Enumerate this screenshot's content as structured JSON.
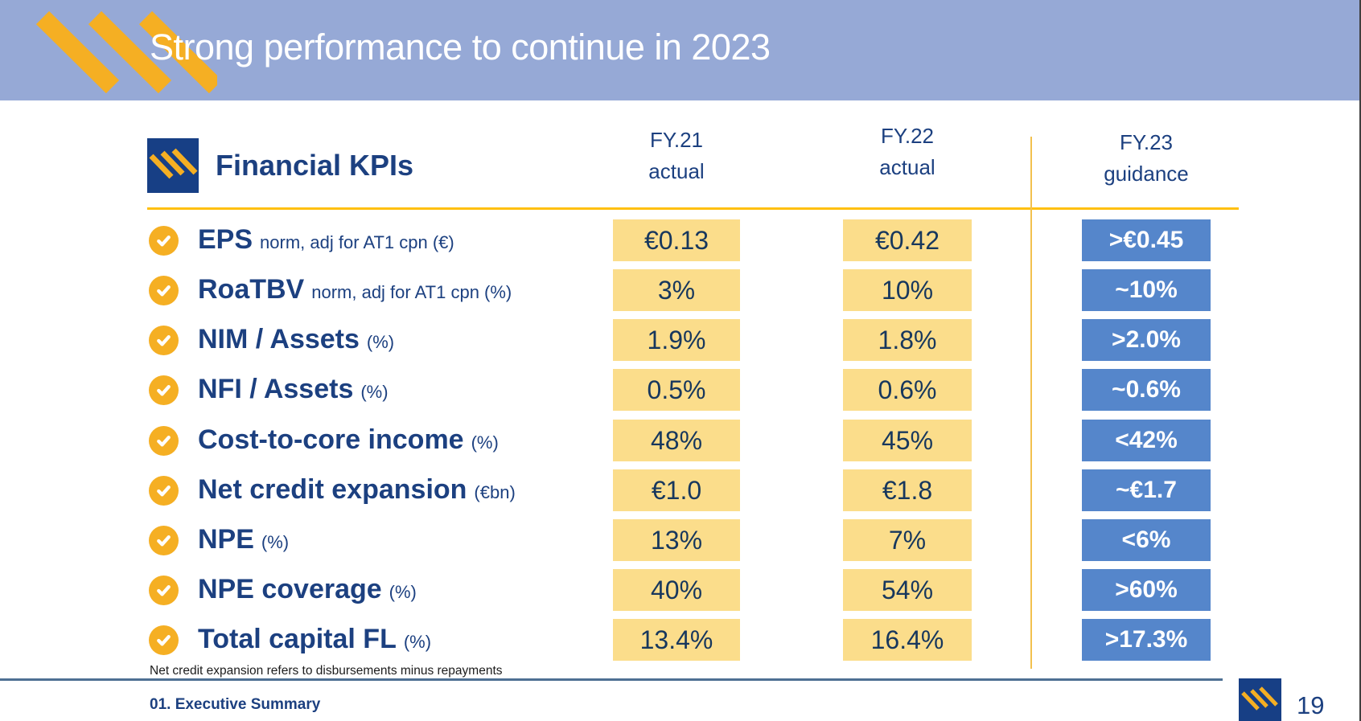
{
  "colors": {
    "band": "#96A9D6",
    "gold": "#F5AF23",
    "gold-line": "#FFC010",
    "gold-thin": "#F2C14E",
    "navy": "#1C4080",
    "navy-deep": "#17375D",
    "yellow-box": "#FBDD8B",
    "blue-box": "#5586CB",
    "logo-navy": "#173F85",
    "rule": "#4E7093",
    "edge": "#3F3F3F",
    "footnote": "#1C1C1C"
  },
  "header": {
    "title": "Strong performance to continue in 2023"
  },
  "table": {
    "title": "Financial KPIs",
    "columns": [
      {
        "line1": "FY.21",
        "line2": "actual"
      },
      {
        "line1": "FY.22",
        "line2": "actual"
      },
      {
        "line1": "FY.23",
        "line2": "guidance"
      }
    ],
    "rows": [
      {
        "label": "EPS",
        "sublabel": "norm, adj for AT1 cpn (€)",
        "fy21": "€0.13",
        "fy22": "€0.42",
        "fy23": ">€0.45"
      },
      {
        "label": "RoaTBV",
        "sublabel": "norm, adj for AT1 cpn (%)",
        "fy21": "3%",
        "fy22": "10%",
        "fy23": "~10%"
      },
      {
        "label": "NIM / Assets",
        "sublabel": "(%)",
        "fy21": "1.9%",
        "fy22": "1.8%",
        "fy23": ">2.0%"
      },
      {
        "label": "NFI / Assets",
        "sublabel": "(%)",
        "fy21": "0.5%",
        "fy22": "0.6%",
        "fy23": "~0.6%"
      },
      {
        "label": "Cost-to-core income",
        "sublabel": "(%)",
        "fy21": "48%",
        "fy22": "45%",
        "fy23": "<42%"
      },
      {
        "label": "Net credit expansion",
        "sublabel": "(€bn)",
        "fy21": "€1.0",
        "fy22": "€1.8",
        "fy23": "~€1.7"
      },
      {
        "label": "NPE",
        "sublabel": "(%)",
        "fy21": "13%",
        "fy22": "7%",
        "fy23": "<6%"
      },
      {
        "label": "NPE coverage",
        "sublabel": "(%)",
        "fy21": "40%",
        "fy22": "54%",
        "fy23": ">60%"
      },
      {
        "label": "Total capital FL",
        "sublabel": "(%)",
        "fy21": "13.4%",
        "fy22": "16.4%",
        "fy23": ">17.3%"
      }
    ]
  },
  "footer": {
    "footnote": "Net credit expansion refers to disbursements minus repayments",
    "section": "01. Executive Summary",
    "page": "19"
  }
}
